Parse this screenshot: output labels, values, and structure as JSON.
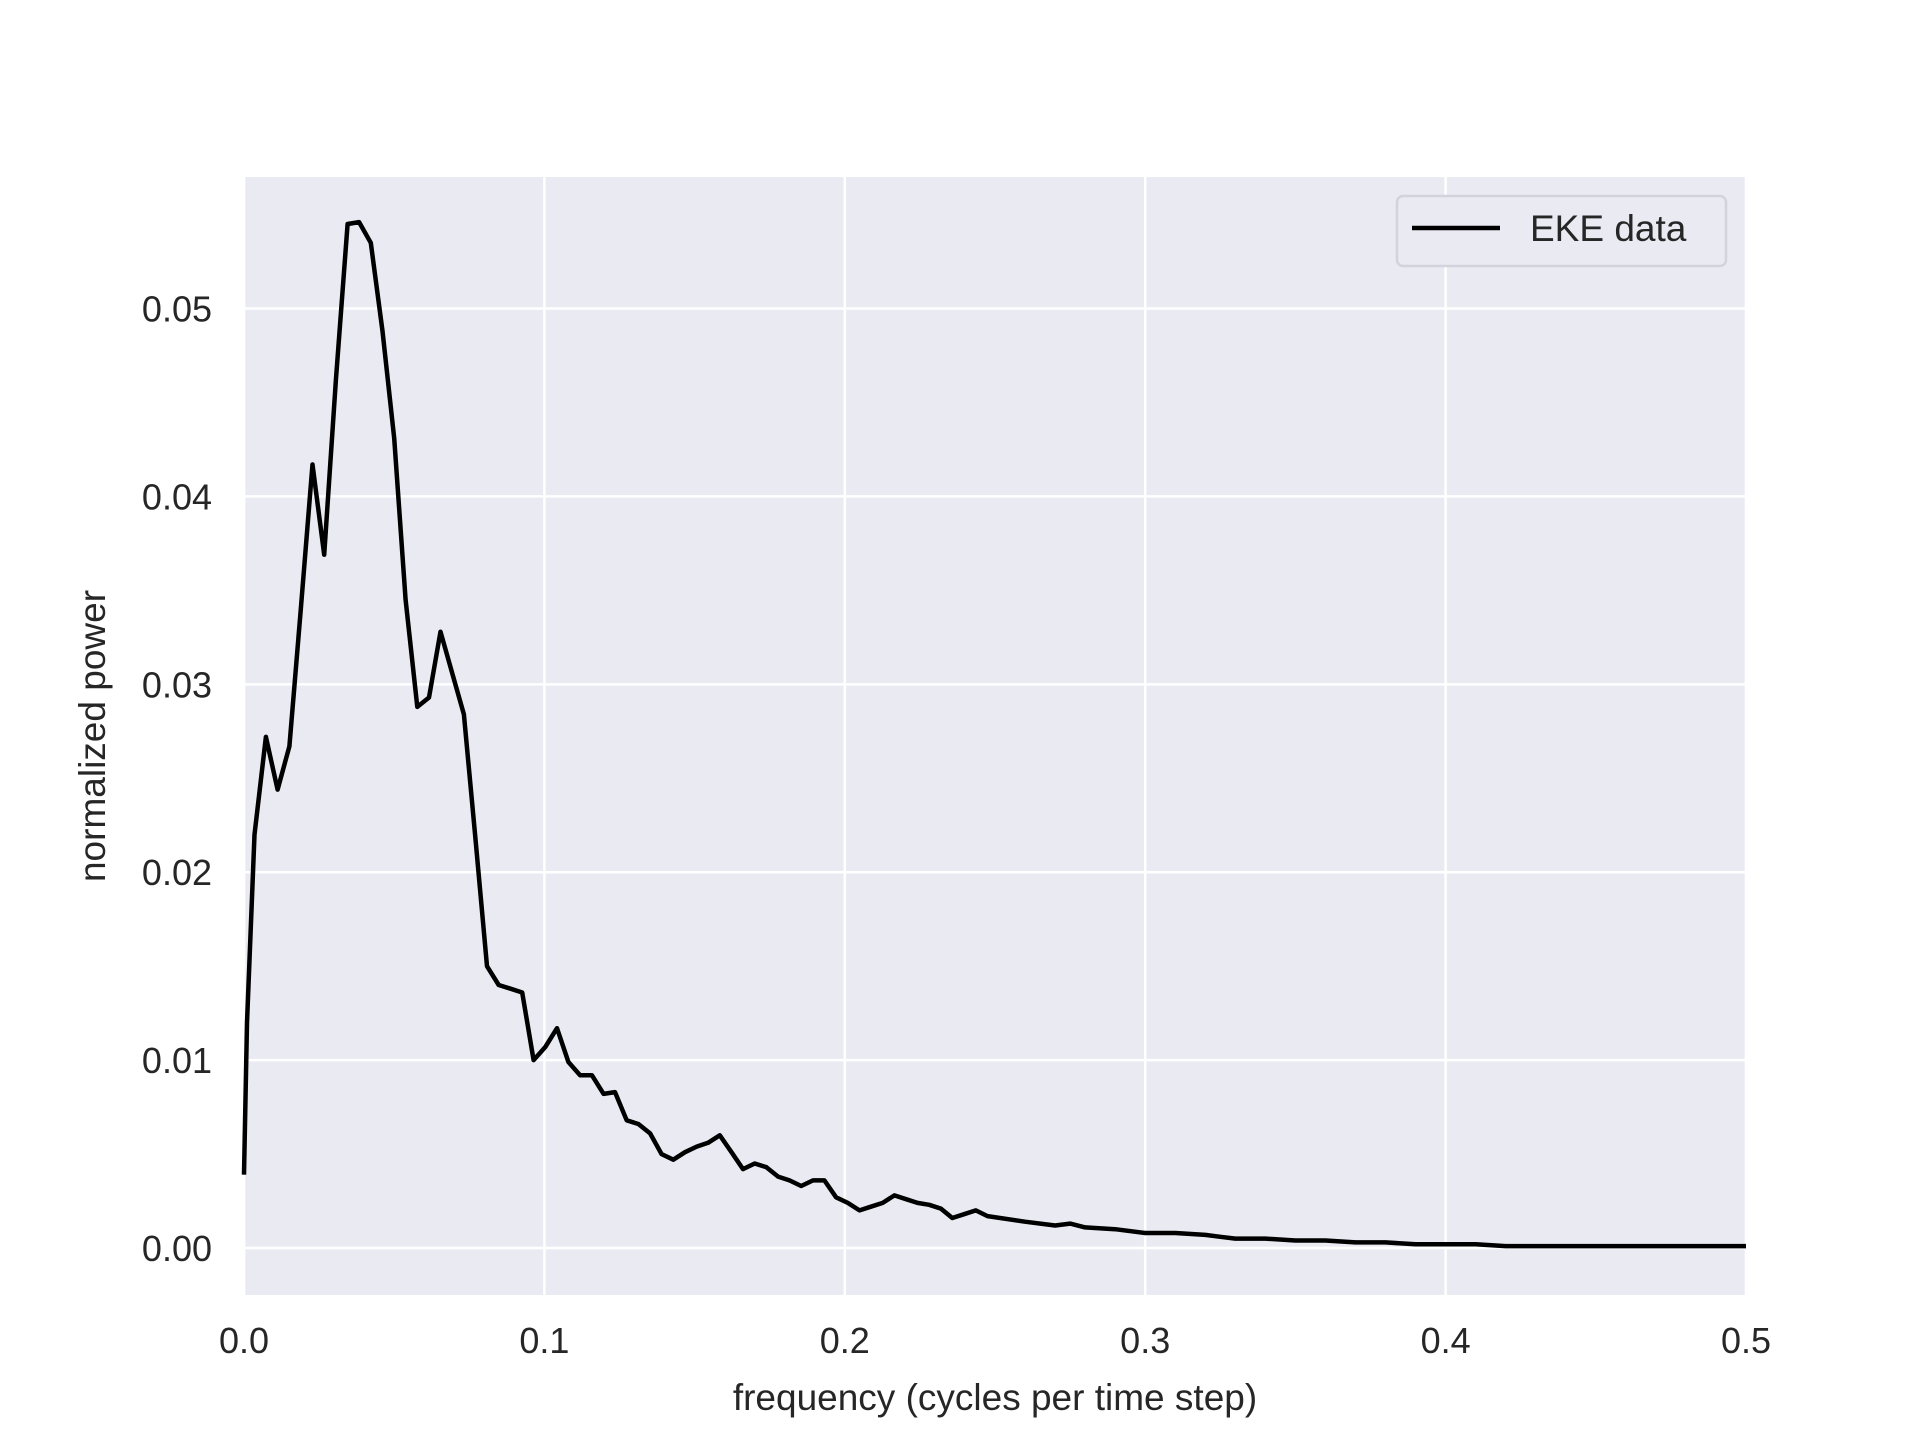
{
  "chart_data": {
    "type": "line",
    "xlabel": "frequency (cycles per time step)",
    "ylabel": "normalized power",
    "xlim": [
      0.0,
      0.5
    ],
    "ylim": [
      -0.0025,
      0.057
    ],
    "xticks": [
      0.0,
      0.1,
      0.2,
      0.3,
      0.4,
      0.5
    ],
    "xtick_labels": [
      "0.0",
      "0.1",
      "0.2",
      "0.3",
      "0.4",
      "0.5"
    ],
    "yticks": [
      0.0,
      0.01,
      0.02,
      0.03,
      0.04,
      0.05
    ],
    "ytick_labels": [
      "0.00",
      "0.01",
      "0.02",
      "0.03",
      "0.04",
      "0.05"
    ],
    "grid": true,
    "legend_position": "top-right",
    "background_color": "#eaeaf2",
    "grid_color": "#ffffff",
    "series": [
      {
        "name": "EKE data",
        "color": "#000000",
        "x": [
          0.0,
          0.001,
          0.0035,
          0.0073,
          0.0112,
          0.0151,
          0.0189,
          0.0228,
          0.0267,
          0.0306,
          0.0345,
          0.0383,
          0.0422,
          0.0461,
          0.05,
          0.0538,
          0.0577,
          0.0616,
          0.0654,
          0.0693,
          0.0732,
          0.0771,
          0.0809,
          0.0848,
          0.0887,
          0.0926,
          0.0964,
          0.1003,
          0.1042,
          0.108,
          0.1119,
          0.1158,
          0.1197,
          0.1235,
          0.1274,
          0.1313,
          0.1352,
          0.139,
          0.1429,
          0.1468,
          0.1507,
          0.1545,
          0.1584,
          0.1623,
          0.1661,
          0.17,
          0.1739,
          0.1778,
          0.1816,
          0.1855,
          0.1894,
          0.1932,
          0.1971,
          0.201,
          0.2049,
          0.2087,
          0.2126,
          0.2165,
          0.2204,
          0.2242,
          0.2281,
          0.232,
          0.2358,
          0.2397,
          0.2436,
          0.2475,
          0.26,
          0.27,
          0.275,
          0.28,
          0.29,
          0.3,
          0.31,
          0.32,
          0.325,
          0.33,
          0.34,
          0.35,
          0.36,
          0.37,
          0.38,
          0.39,
          0.4,
          0.41,
          0.42,
          0.43,
          0.44,
          0.45,
          0.46,
          0.47,
          0.48,
          0.49,
          0.5
        ],
        "y": [
          0.0039,
          0.012,
          0.022,
          0.0272,
          0.0244,
          0.0267,
          0.034,
          0.0417,
          0.0369,
          0.0462,
          0.0545,
          0.0546,
          0.0535,
          0.0488,
          0.0431,
          0.0345,
          0.0288,
          0.0293,
          0.0328,
          0.0306,
          0.0284,
          0.0217,
          0.015,
          0.014,
          0.0138,
          0.0136,
          0.01,
          0.0107,
          0.0117,
          0.0099,
          0.0092,
          0.0092,
          0.0082,
          0.0083,
          0.0068,
          0.0066,
          0.0061,
          0.005,
          0.0047,
          0.0051,
          0.0054,
          0.0056,
          0.006,
          0.0051,
          0.0042,
          0.0045,
          0.0043,
          0.0038,
          0.0036,
          0.0033,
          0.0036,
          0.0036,
          0.0027,
          0.0024,
          0.002,
          0.0022,
          0.0024,
          0.0028,
          0.0026,
          0.0024,
          0.0023,
          0.0021,
          0.0016,
          0.0018,
          0.002,
          0.0017,
          0.0014,
          0.0012,
          0.0013,
          0.0011,
          0.001,
          0.0008,
          0.0008,
          0.0007,
          0.0006,
          0.0005,
          0.0005,
          0.0004,
          0.0004,
          0.0003,
          0.0003,
          0.0002,
          0.0002,
          0.0002,
          0.0001,
          0.0001,
          0.0001,
          0.0001,
          0.0001,
          0.0001,
          0.0001,
          0.0001,
          0.0001
        ]
      }
    ]
  }
}
